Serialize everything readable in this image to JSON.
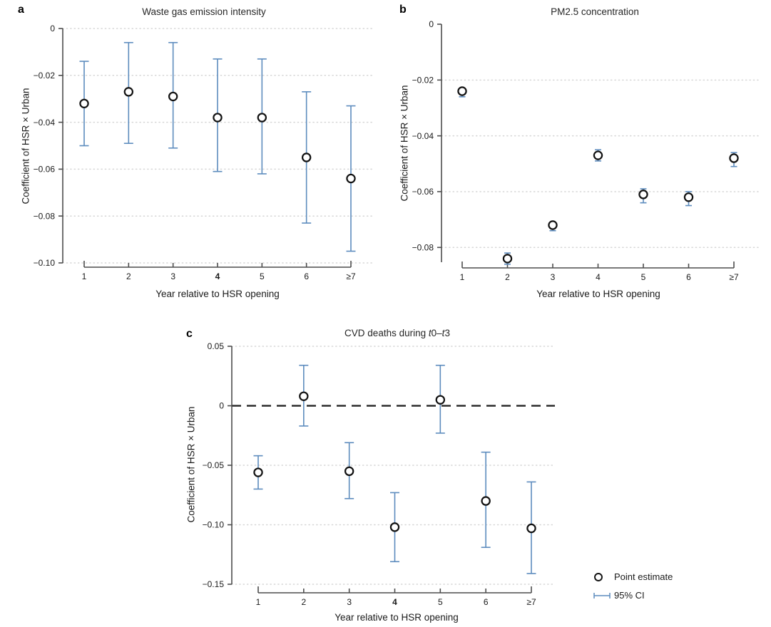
{
  "figure": {
    "colors": {
      "ci_blue": "#5d8cbe",
      "point_stroke": "#111111",
      "point_fill": "#ffffff",
      "grid": "#d6d6d6",
      "axis": "#4d4d4d",
      "zero_line": "#2e2e2e",
      "text": "#1a1a1a"
    },
    "legend": {
      "items": [
        {
          "label": "Point estimate",
          "icon": "open-circle-icon"
        },
        {
          "label": "95% CI",
          "icon": "ci-whisker-icon"
        }
      ]
    }
  },
  "chart_data": [
    {
      "panel_label": "a",
      "type": "scatter",
      "title": "Waste gas emission intensity",
      "title_italic_t": false,
      "xlabel": "Year relative to HSR opening",
      "ylabel": "Coefficient of HSR × Urban",
      "categories": [
        "1",
        "2",
        "3",
        "4",
        "5",
        "6",
        "≥7"
      ],
      "bold_categories": [
        false,
        false,
        false,
        true,
        false,
        false,
        false
      ],
      "ylim": [
        -0.1,
        0
      ],
      "y_ticks": [
        {
          "v": 0,
          "label": "0",
          "grid": true
        },
        {
          "v": -0.02,
          "label": "−0.02",
          "grid": true
        },
        {
          "v": -0.04,
          "label": "−0.04",
          "grid": true
        },
        {
          "v": -0.06,
          "label": "−0.06",
          "grid": true
        },
        {
          "v": -0.08,
          "label": "−0.08",
          "grid": true
        },
        {
          "v": -0.1,
          "label": "−0.10",
          "grid": true
        }
      ],
      "zero_line": false,
      "series": [
        {
          "name": "Point estimate",
          "estimates": [
            -0.032,
            -0.027,
            -0.029,
            -0.038,
            -0.038,
            -0.055,
            -0.064
          ],
          "ci_low": [
            -0.05,
            -0.049,
            -0.051,
            -0.061,
            -0.062,
            -0.083,
            -0.095
          ],
          "ci_high": [
            -0.014,
            -0.006,
            -0.006,
            -0.013,
            -0.013,
            -0.027,
            -0.033
          ]
        }
      ]
    },
    {
      "panel_label": "b",
      "type": "scatter",
      "title": "PM2.5 concentration",
      "title_italic_t": false,
      "xlabel": "Year relative to HSR opening",
      "ylabel": "Coefficient of HSR × Urban",
      "categories": [
        "1",
        "2",
        "3",
        "4",
        "5",
        "6",
        "≥7"
      ],
      "bold_categories": [
        false,
        false,
        false,
        false,
        false,
        false,
        false
      ],
      "ylim": [
        -0.088,
        0
      ],
      "y_ticks": [
        {
          "v": 0,
          "label": "0",
          "grid": false
        },
        {
          "v": -0.02,
          "label": "−0.02",
          "grid": true
        },
        {
          "v": -0.04,
          "label": "−0.04",
          "grid": true
        },
        {
          "v": -0.06,
          "label": "−0.06",
          "grid": true
        },
        {
          "v": -0.08,
          "label": "−0.08",
          "grid": true
        }
      ],
      "zero_line": false,
      "series": [
        {
          "name": "Point estimate",
          "estimates": [
            -0.024,
            -0.084,
            -0.072,
            -0.047,
            -0.061,
            -0.062,
            -0.048
          ],
          "ci_low": [
            -0.026,
            -0.086,
            -0.074,
            -0.049,
            -0.064,
            -0.065,
            -0.051
          ],
          "ci_high": [
            -0.023,
            -0.082,
            -0.071,
            -0.045,
            -0.059,
            -0.06,
            -0.046
          ]
        }
      ]
    },
    {
      "panel_label": "c",
      "type": "scatter",
      "title": "CVD deaths during t0–t3",
      "title_italic_t": true,
      "xlabel": "Year relative to HSR opening",
      "ylabel": "Coefficient of HSR × Urban",
      "categories": [
        "1",
        "2",
        "3",
        "4",
        "5",
        "6",
        "≥7"
      ],
      "bold_categories": [
        false,
        false,
        false,
        true,
        false,
        false,
        false
      ],
      "ylim": [
        -0.15,
        0.05
      ],
      "y_ticks": [
        {
          "v": 0.05,
          "label": "0.05",
          "grid": true
        },
        {
          "v": 0,
          "label": "0",
          "grid": false
        },
        {
          "v": -0.05,
          "label": "−0.05",
          "grid": true
        },
        {
          "v": -0.1,
          "label": "−0.10",
          "grid": true
        },
        {
          "v": -0.15,
          "label": "−0.15",
          "grid": true
        }
      ],
      "zero_line": true,
      "series": [
        {
          "name": "Point estimate",
          "estimates": [
            -0.056,
            0.008,
            -0.055,
            -0.102,
            0.005,
            -0.08,
            -0.103
          ],
          "ci_low": [
            -0.07,
            -0.017,
            -0.078,
            -0.131,
            -0.023,
            -0.119,
            -0.141
          ],
          "ci_high": [
            -0.042,
            0.034,
            -0.031,
            -0.073,
            0.034,
            -0.039,
            -0.064
          ]
        }
      ]
    }
  ]
}
